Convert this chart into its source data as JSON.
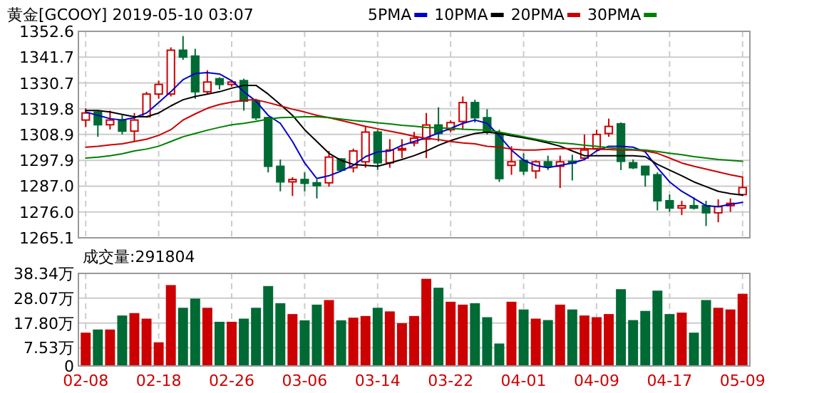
{
  "chart_data": [
    {
      "type": "candlestick",
      "title": "黄金[GCOOY] 2019-05-10 03:07",
      "categories": [
        null,
        null,
        null,
        null,
        null,
        null,
        null,
        null,
        null,
        null,
        null,
        null,
        null,
        null,
        null,
        null,
        null,
        null,
        null,
        null,
        null,
        null,
        null,
        null,
        null,
        null,
        null,
        null,
        null,
        null,
        null,
        null,
        null,
        null,
        null,
        null,
        null,
        null,
        null,
        null,
        null,
        null,
        null,
        null,
        null,
        null,
        null,
        null,
        null,
        null,
        null,
        null,
        null,
        null,
        null
      ],
      "ohlc": [
        [
          1315.0,
          1320.0,
          1312.0,
          1318.0
        ],
        [
          1318.4,
          1319.0,
          1307.9,
          1313.0
        ],
        [
          1313.0,
          1319.0,
          1311.0,
          1315.0
        ],
        [
          1315.0,
          1317.0,
          1308.9,
          1310.3
        ],
        [
          1310.3,
          1318.0,
          1305.9,
          1315.0
        ],
        [
          1316.4,
          1327.0,
          1316.0,
          1326.0
        ],
        [
          1326.0,
          1331.7,
          1324.0,
          1330.1
        ],
        [
          1326.0,
          1345.8,
          1325.0,
          1344.6
        ],
        [
          1344.6,
          1350.6,
          1340.5,
          1341.7
        ],
        [
          1342.1,
          1345.2,
          1324.0,
          1327.0
        ],
        [
          1327.0,
          1336.1,
          1326.0,
          1331.1
        ],
        [
          1332.5,
          1333.1,
          1328.0,
          1330.1
        ],
        [
          1330.1,
          1332.1,
          1329.1,
          1331.1
        ],
        [
          1331.7,
          1332.5,
          1319.0,
          1323.0
        ],
        [
          1323.0,
          1324.0,
          1315.0,
          1316.0
        ],
        [
          1316.0,
          1316.4,
          1292.8,
          1295.4
        ],
        [
          1295.4,
          1298.3,
          1284.8,
          1288.8
        ],
        [
          1288.8,
          1290.8,
          1282.8,
          1289.8
        ],
        [
          1289.8,
          1292.8,
          1284.8,
          1288.2
        ],
        [
          1288.4,
          1289.8,
          1281.8,
          1287.2
        ],
        [
          1288.4,
          1301.9,
          1286.8,
          1299.3
        ],
        [
          1298.5,
          1298.9,
          1293.4,
          1293.8
        ],
        [
          1294.8,
          1302.9,
          1292.8,
          1301.9
        ],
        [
          1297.3,
          1312.3,
          1294.8,
          1309.9
        ],
        [
          1309.9,
          1310.9,
          1293.8,
          1296.9
        ],
        [
          1296.9,
          1306.9,
          1294.8,
          1302.3
        ],
        [
          1302.3,
          1306.9,
          1298.9,
          1302.9
        ],
        [
          1305.3,
          1310.0,
          1303.9,
          1307.3
        ],
        [
          1306.9,
          1318.0,
          1298.9,
          1312.9
        ],
        [
          1312.9,
          1320.4,
          1305.9,
          1309.3
        ],
        [
          1310.9,
          1314.9,
          1309.9,
          1313.9
        ],
        [
          1314.4,
          1325.0,
          1310.9,
          1322.4
        ],
        [
          1322.4,
          1323.6,
          1314.0,
          1316.0
        ],
        [
          1316.0,
          1319.6,
          1308.9,
          1309.9
        ],
        [
          1309.3,
          1310.9,
          1288.8,
          1290.2
        ],
        [
          1295.8,
          1303.9,
          1291.8,
          1297.3
        ],
        [
          1297.9,
          1300.9,
          1291.8,
          1293.4
        ],
        [
          1293.4,
          1297.9,
          1290.2,
          1297.3
        ],
        [
          1297.3,
          1299.9,
          1293.8,
          1295.4
        ],
        [
          1295.4,
          1299.9,
          1286.2,
          1297.3
        ],
        [
          1297.5,
          1300.3,
          1289.4,
          1296.7
        ],
        [
          1298.9,
          1308.9,
          1297.9,
          1302.3
        ],
        [
          1302.9,
          1310.9,
          1301.9,
          1308.9
        ],
        [
          1309.3,
          1315.6,
          1307.9,
          1312.3
        ],
        [
          1313.4,
          1314.0,
          1293.8,
          1297.5
        ],
        [
          1296.9,
          1298.3,
          1294.2,
          1294.8
        ],
        [
          1295.4,
          1295.4,
          1286.8,
          1291.8
        ],
        [
          1291.8,
          1292.8,
          1276.7,
          1280.8
        ],
        [
          1280.8,
          1283.4,
          1276.1,
          1277.7
        ],
        [
          1277.7,
          1280.8,
          1274.7,
          1278.7
        ],
        [
          1278.7,
          1282.2,
          1277.1,
          1277.7
        ],
        [
          1278.7,
          1280.8,
          1270.1,
          1275.7
        ],
        [
          1275.7,
          1281.4,
          1271.7,
          1278.3
        ],
        [
          1278.7,
          1281.8,
          1276.1,
          1279.7
        ],
        [
          1283.4,
          1290.8,
          1282.8,
          1286.4
        ]
      ],
      "series": [
        {
          "name": "5PMA",
          "type": "line",
          "color": "#0000cc",
          "values": [
            1318.4,
            1317.0,
            1315.6,
            1315.0,
            1316.0,
            1318.0,
            1322.4,
            1327.0,
            1332.1,
            1334.7,
            1335.1,
            1334.5,
            1331.7,
            1327.0,
            1323.0,
            1317.0,
            1313.6,
            1305.9,
            1296.8,
            1290.2,
            1291.4,
            1293.4,
            1295.8,
            1299.5,
            1301.5,
            1301.9,
            1304.3,
            1305.9,
            1307.5,
            1309.5,
            1311.5,
            1313.6,
            1315.0,
            1313.6,
            1308.3,
            1302.3,
            1297.9,
            1295.8,
            1294.8,
            1295.8,
            1296.8,
            1298.3,
            1301.9,
            1303.9,
            1303.9,
            1303.5,
            1301.5,
            1294.8,
            1288.8,
            1284.8,
            1281.8,
            1278.7,
            1278.3,
            1279.3,
            1280.1
          ]
        },
        {
          "name": "10PMA",
          "type": "line",
          "color": "#000000",
          "values": [
            1319.0,
            1319.0,
            1318.4,
            1317.4,
            1316.4,
            1316.4,
            1318.0,
            1321.0,
            1323.6,
            1325.0,
            1326.0,
            1327.0,
            1328.5,
            1329.7,
            1329.7,
            1326.0,
            1321.6,
            1317.0,
            1310.9,
            1305.9,
            1300.9,
            1297.9,
            1296.2,
            1295.8,
            1295.4,
            1296.8,
            1298.3,
            1299.9,
            1301.9,
            1304.3,
            1306.3,
            1307.9,
            1309.3,
            1309.9,
            1309.3,
            1308.3,
            1307.5,
            1306.5,
            1305.3,
            1303.9,
            1301.9,
            1299.9,
            1299.9,
            1299.9,
            1299.9,
            1299.9,
            1299.5,
            1296.2,
            1293.8,
            1291.4,
            1288.8,
            1286.8,
            1284.8,
            1283.8,
            1283.2
          ]
        },
        {
          "name": "20PMA",
          "type": "line",
          "color": "#cc0000",
          "values": [
            1303.5,
            1303.9,
            1304.5,
            1304.9,
            1305.9,
            1306.9,
            1308.5,
            1310.9,
            1315.0,
            1317.6,
            1320.0,
            1321.6,
            1322.6,
            1323.4,
            1323.6,
            1322.4,
            1321.0,
            1319.6,
            1318.4,
            1317.0,
            1316.0,
            1314.8,
            1313.6,
            1312.3,
            1311.3,
            1310.3,
            1309.3,
            1308.1,
            1307.3,
            1306.7,
            1305.9,
            1305.3,
            1304.9,
            1303.9,
            1303.5,
            1302.7,
            1302.3,
            1302.3,
            1302.7,
            1302.9,
            1302.9,
            1302.9,
            1302.7,
            1302.5,
            1302.3,
            1302.3,
            1301.9,
            1300.9,
            1298.9,
            1296.8,
            1295.4,
            1294.2,
            1293.0,
            1291.8,
            1290.8
          ]
        },
        {
          "name": "30PMA",
          "type": "line",
          "color": "#008000",
          "values": [
            1298.9,
            1299.3,
            1299.9,
            1300.7,
            1301.9,
            1302.7,
            1303.9,
            1305.9,
            1307.9,
            1309.3,
            1310.7,
            1311.9,
            1313.0,
            1313.6,
            1314.4,
            1315.4,
            1316.0,
            1316.2,
            1316.4,
            1316.4,
            1316.0,
            1315.4,
            1314.8,
            1314.4,
            1313.8,
            1313.4,
            1312.8,
            1312.4,
            1311.9,
            1311.7,
            1311.5,
            1311.1,
            1310.9,
            1310.7,
            1309.9,
            1308.9,
            1307.9,
            1306.9,
            1305.9,
            1305.3,
            1304.9,
            1304.3,
            1303.9,
            1303.3,
            1302.9,
            1302.5,
            1302.3,
            1301.7,
            1300.9,
            1300.3,
            1299.5,
            1298.9,
            1298.3,
            1297.9,
            1297.5
          ]
        }
      ],
      "ylim": [
        1265.1,
        1352.6
      ],
      "yticks": [
        1265.1,
        {
          "value": 1276.0,
          "label": "1276.0"
        },
        {
          "value": 1287.0,
          "label": "1287.0"
        },
        1297.9,
        1308.9,
        1319.8,
        1330.7,
        1341.7,
        1352.6
      ],
      "grid": true,
      "legend": "top",
      "tick_labels": "y"
    },
    {
      "type": "bar",
      "title": "成交量:291804",
      "categories": [
        "02-08",
        null,
        null,
        null,
        null,
        null,
        "02-18",
        null,
        null,
        null,
        null,
        null,
        "02-26",
        null,
        null,
        null,
        null,
        null,
        "03-06",
        null,
        null,
        null,
        null,
        null,
        "03-14",
        null,
        null,
        null,
        null,
        null,
        "03-22",
        null,
        null,
        null,
        null,
        null,
        "04-01",
        null,
        null,
        null,
        null,
        null,
        "04-09",
        null,
        null,
        null,
        null,
        null,
        "04-17",
        null,
        null,
        null,
        null,
        null,
        "05-09"
      ],
      "values": [
        13.5,
        14.8,
        14.8,
        20.6,
        21.6,
        19.3,
        9.5,
        33.2,
        23.8,
        27.6,
        23.8,
        18.0,
        18.0,
        19.3,
        23.8,
        32.8,
        25.7,
        21.2,
        18.6,
        25.1,
        27.0,
        18.6,
        19.7,
        20.4,
        23.8,
        22.3,
        17.4,
        20.4,
        35.8,
        32.1,
        26.3,
        25.1,
        25.7,
        19.9,
        9.0,
        26.3,
        23.1,
        19.3,
        18.7,
        25.1,
        23.1,
        20.6,
        19.9,
        21.2,
        31.5,
        18.7,
        22.5,
        30.9,
        21.2,
        21.8,
        13.5,
        27.0,
        23.8,
        23.1,
        29.6
      ],
      "colors": [
        "#cc0000",
        "#006a35",
        "#cc0000",
        "#006a35",
        "#cc0000",
        "#cc0000",
        "#cc0000",
        "#cc0000",
        "#006a35",
        "#006a35",
        "#cc0000",
        "#006a35",
        "#cc0000",
        "#006a35",
        "#006a35",
        "#006a35",
        "#006a35",
        "#cc0000",
        "#006a35",
        "#006a35",
        "#cc0000",
        "#006a35",
        "#cc0000",
        "#cc0000",
        "#006a35",
        "#cc0000",
        "#cc0000",
        "#cc0000",
        "#cc0000",
        "#006a35",
        "#cc0000",
        "#cc0000",
        "#006a35",
        "#006a35",
        "#006a35",
        "#cc0000",
        "#006a35",
        "#cc0000",
        "#006a35",
        "#cc0000",
        "#006a35",
        "#cc0000",
        "#cc0000",
        "#cc0000",
        "#006a35",
        "#006a35",
        "#006a35",
        "#006a35",
        "#006a35",
        "#cc0000",
        "#006a35",
        "#006a35",
        "#cc0000",
        "#cc0000",
        "#cc0000"
      ],
      "ylim": [
        0,
        38.34
      ],
      "yticks": [
        0,
        {
          "value": 7.53,
          "label": "7.53万"
        },
        {
          "value": 17.8,
          "label": "17.80万"
        },
        {
          "value": 28.07,
          "label": "28.07万"
        },
        {
          "value": 38.34,
          "label": "38.34万"
        }
      ],
      "grid": true
    }
  ]
}
